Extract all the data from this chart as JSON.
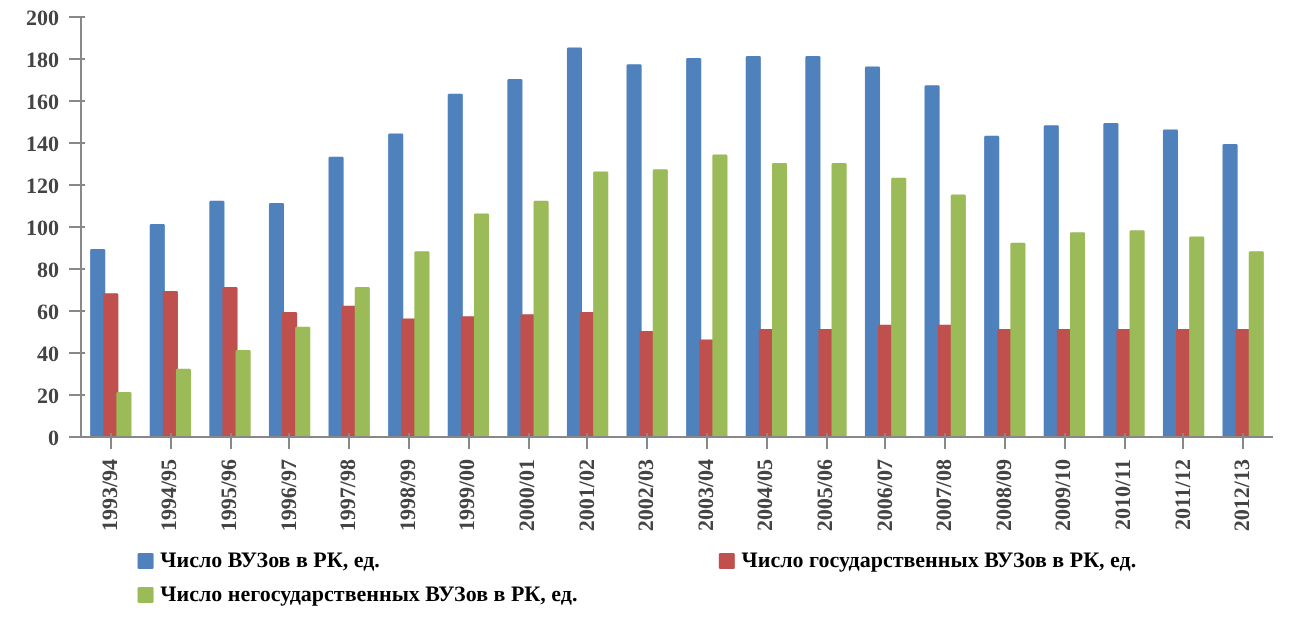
{
  "chart_data": {
    "type": "bar",
    "categories": [
      "1993/94",
      "1994/95",
      "1995/96",
      "1996/97",
      "1997/98",
      "1998/99",
      "1999/00",
      "2000/01",
      "2001/02",
      "2002/03",
      "2003/04",
      "2004/05",
      "2005/06",
      "2006/07",
      "2007/08",
      "2008/09",
      "2009/10",
      "2010/11",
      "2011/12",
      "2012/13"
    ],
    "series": [
      {
        "name": "Число ВУЗов в РК, ед.",
        "color": "#4f81bd",
        "values": [
          89,
          101,
          112,
          111,
          133,
          144,
          163,
          170,
          185,
          177,
          180,
          181,
          181,
          176,
          167,
          143,
          148,
          149,
          146,
          139
        ]
      },
      {
        "name": "Число государственных ВУЗов в РК, ед.",
        "color": "#c0504d",
        "values": [
          68,
          69,
          71,
          59,
          62,
          56,
          57,
          58,
          59,
          50,
          46,
          51,
          51,
          53,
          53,
          51,
          51,
          51,
          51,
          51
        ]
      },
      {
        "name": "Число негосударственных ВУЗов в РК, ед.",
        "color": "#9bbb59",
        "values": [
          21,
          32,
          41,
          52,
          71,
          88,
          106,
          112,
          126,
          127,
          134,
          130,
          130,
          123,
          115,
          92,
          97,
          98,
          95,
          88
        ]
      }
    ],
    "ylim": [
      0,
      200
    ],
    "yticks": [
      0,
      20,
      40,
      60,
      80,
      100,
      120,
      140,
      160,
      180,
      200
    ],
    "grid": false,
    "legend": "bottom"
  }
}
